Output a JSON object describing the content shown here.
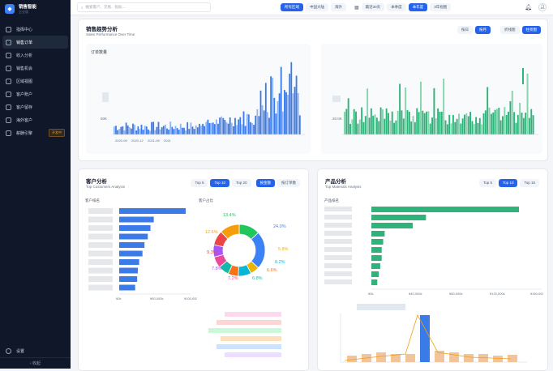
{
  "brand": {
    "title": "销售智能",
    "subtitle": "企业版"
  },
  "nav": [
    {
      "label": "指挥中心",
      "icon": "grid-icon",
      "active": false
    },
    {
      "label": "销售订单",
      "icon": "document-icon",
      "active": true
    },
    {
      "label": "收入分析",
      "icon": "trend-icon",
      "active": false
    },
    {
      "label": "销售机会",
      "icon": "target-icon",
      "active": false
    },
    {
      "label": "区域视图",
      "icon": "map-icon",
      "active": false
    },
    {
      "label": "客户账户",
      "icon": "users-icon",
      "active": false
    },
    {
      "label": "客户留存",
      "icon": "retention-icon",
      "active": false
    },
    {
      "label": "海外客户",
      "icon": "globe-icon",
      "active": false
    },
    {
      "label": "薪酬引擎",
      "icon": "dollar-icon",
      "active": false,
      "badge": "开发中"
    }
  ],
  "settings_label": "设置",
  "collapse_label": "收起",
  "search_placeholder": "搜索客户、交易、指标...",
  "region_tabs": [
    {
      "label": "所有区域",
      "on": true
    },
    {
      "label": "中国大陆",
      "on": false
    },
    {
      "label": "海外",
      "on": false
    }
  ],
  "period_tabs": [
    {
      "label": "最近30天",
      "on": false
    },
    {
      "label": "本季度",
      "on": false
    },
    {
      "label": "本年度",
      "on": true
    },
    {
      "label": "3年视图",
      "on": false
    }
  ],
  "trend": {
    "title": "销售趋势分析",
    "subtitle": "Sales Performance Over Time",
    "toggle1": [
      {
        "label": "按日",
        "on": false
      },
      {
        "label": "按月",
        "on": true
      }
    ],
    "toggle2": [
      {
        "label": "折线图",
        "on": false
      },
      {
        "label": "柱状图",
        "on": true
      }
    ],
    "left_label": "订单数量",
    "left_y": "50K",
    "left_x": [
      "2020-06",
      "2020-12",
      "2021-06",
      "2021"
    ],
    "right_y": "20.0K"
  },
  "customers": {
    "title": "客户分析",
    "subtitle": "Top Customers Analysis",
    "top": [
      {
        "label": "Top 5",
        "on": false
      },
      {
        "label": "Top 10",
        "on": true
      },
      {
        "label": "Top 20",
        "on": false
      }
    ],
    "mode": [
      {
        "label": "按金额",
        "on": true
      },
      {
        "label": "按订单数",
        "on": false
      }
    ],
    "rank_label": "客户排名",
    "share_label": "客户占比",
    "x_ticks": [
      "¥0k",
      "¥50,000k",
      "¥100,000k"
    ],
    "pie_labels": [
      "13.4%",
      "24.0%",
      "12.6%",
      "5.8%",
      "9.3%",
      "8.2%",
      "7.8%",
      "6.6%",
      "7.2%",
      "6.8%"
    ],
    "bar_values": [
      100,
      52,
      47,
      43,
      38,
      35,
      30,
      28,
      27,
      24
    ],
    "pie_values": [
      13.4,
      24.0,
      5.8,
      8.2,
      6.6,
      6.8,
      7.2,
      7.8,
      9.3,
      12.6
    ],
    "pie_colors": [
      "#22c55e",
      "#3b82f6",
      "#eab308",
      "#06b6d4",
      "#f97316",
      "#14b8a6",
      "#ec4899",
      "#a855f7",
      "#ef4444",
      "#f59e0b"
    ]
  },
  "products": {
    "title": "产品分析",
    "subtitle": "Top Materials Analysis",
    "top": [
      {
        "label": "Top 5",
        "on": false
      },
      {
        "label": "Top 10",
        "on": true
      },
      {
        "label": "Top 15",
        "on": false
      }
    ],
    "rank_label": "产品排名",
    "x_ticks": [
      "¥0k",
      "¥40,000k",
      "¥80,000k",
      "¥120,000k",
      "¥160,000k"
    ],
    "bar_values": [
      100,
      37,
      28,
      9,
      8,
      7,
      7,
      6,
      5,
      4
    ]
  },
  "colors": {
    "accent": "#2563eb",
    "green": "#2fb37a",
    "blue": "#3b7be8"
  }
}
